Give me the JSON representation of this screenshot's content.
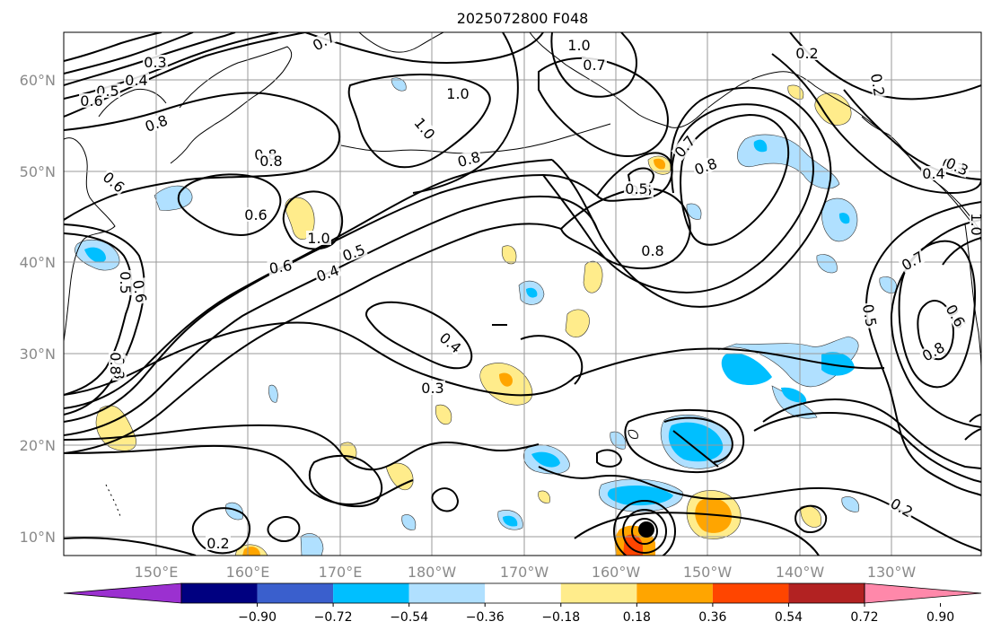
{
  "title": "2025072800 F048",
  "map": {
    "lat_labels": [
      "60°N",
      "50°N",
      "40°N",
      "30°N",
      "20°N",
      "10°N"
    ],
    "lon_labels": [
      "150°E",
      "160°E",
      "170°E",
      "180°W",
      "170°W",
      "160°W",
      "150°W",
      "140°W",
      "130°W"
    ],
    "contour_labels": [
      "0.3",
      "0.4",
      "0.5",
      "0.6",
      "0.8",
      "0.7",
      "1.0",
      "1.0",
      "0.7",
      "1.0",
      "0.2",
      "0.2",
      "0.3",
      "0.8",
      "1.0",
      "0.8",
      "0.6",
      "0.6",
      "0.8",
      "0.7",
      "0.5",
      "0.8",
      "0.8",
      "0.5",
      "0.4",
      "0.6",
      "1.0",
      "0.5",
      "0.4",
      "0.8",
      "0.6",
      "0.5",
      "0.6",
      "0.4",
      "0.3",
      "0.7",
      "0.5",
      "0.6",
      "0.8",
      "0.8",
      "0.2",
      "0.3",
      "0.2"
    ]
  },
  "colorbar": {
    "colors": [
      "#9b30d0",
      "#000080",
      "#3a5fcd",
      "#00bfff",
      "#b0e0ff",
      "#ffffff",
      "#ffec8b",
      "#ffa500",
      "#ff4500",
      "#b22222",
      "#ff88aa"
    ],
    "tick_labels": [
      "−0.90",
      "−0.72",
      "−0.54",
      "−0.36",
      "−0.18",
      "0.18",
      "0.36",
      "0.54",
      "0.72",
      "0.90"
    ]
  }
}
